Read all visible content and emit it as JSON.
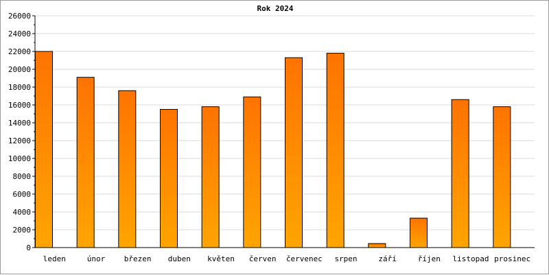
{
  "chart_data": {
    "type": "bar",
    "title": "Rok 2024",
    "categories": [
      "leden",
      "únor",
      "březen",
      "duben",
      "květen",
      "červen",
      "červenec",
      "srpen",
      "září",
      "říjen",
      "listopad",
      "prosinec"
    ],
    "values": [
      22000,
      19100,
      17600,
      15500,
      15800,
      16900,
      21300,
      21800,
      450,
      3300,
      16600,
      15800
    ],
    "ylim": [
      0,
      26000
    ],
    "yticks": [
      0,
      2000,
      4000,
      6000,
      8000,
      10000,
      12000,
      14000,
      16000,
      18000,
      20000,
      22000,
      24000,
      26000
    ],
    "grid": true,
    "colors": {
      "bar_top": "#ff7300",
      "bar_bottom": "#ffa500",
      "bar_stroke": "#000000",
      "grid": "#d8d8d8",
      "axis": "#000000"
    }
  }
}
